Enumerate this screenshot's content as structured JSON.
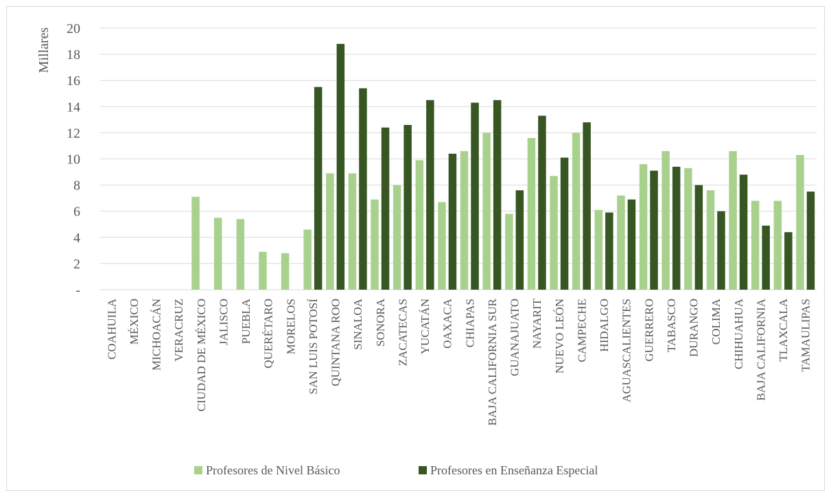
{
  "chart_data": {
    "type": "bar",
    "ylabel": "Millares",
    "ylim": [
      0,
      20
    ],
    "yticks": [
      {
        "value": 0,
        "label": "-"
      },
      {
        "value": 2,
        "label": "2"
      },
      {
        "value": 4,
        "label": "4"
      },
      {
        "value": 6,
        "label": "6"
      },
      {
        "value": 8,
        "label": "8"
      },
      {
        "value": 10,
        "label": "10"
      },
      {
        "value": 12,
        "label": "12"
      },
      {
        "value": 14,
        "label": "14"
      },
      {
        "value": 16,
        "label": "16"
      },
      {
        "value": 18,
        "label": "18"
      },
      {
        "value": 20,
        "label": "20"
      }
    ],
    "grid": true,
    "legend_position": "bottom",
    "categories": [
      "COAHUILA",
      "MÉXICO",
      "MICHOACÁN",
      "VERACRUZ",
      "CIUDAD DE MÉXICO",
      "JALISCO",
      "PUEBLA",
      "QUERÉTARO",
      "MORELOS",
      "SAN LUIS POTOSÍ",
      "QUINTANA ROO",
      "SINALOA",
      "SONORA",
      "ZACATECAS",
      "YUCATÁN",
      "OAXACA",
      "CHIAPAS",
      "BAJA CALIFORNIA SUR",
      "GUANAJUATO",
      "NAYARIT",
      "NUEVO LEÓN",
      "CAMPECHE",
      "HIDALGO",
      "AGUASCALIENTES",
      "GUERRERO",
      "TABASCO",
      "DURANGO",
      "COLIMA",
      "CHIHUAHUA",
      "BAJA CALIFORNIA",
      "TLAXCALA",
      "TAMAULIPAS"
    ],
    "series": [
      {
        "name": "Profesores de Nivel Básico",
        "color": "#a9d18e",
        "values": [
          0,
          0,
          0,
          0,
          7.1,
          5.5,
          5.4,
          2.9,
          2.8,
          4.6,
          8.9,
          8.9,
          6.9,
          8.0,
          9.9,
          6.7,
          10.6,
          12.0,
          5.8,
          11.6,
          8.7,
          12.0,
          6.1,
          7.2,
          9.6,
          10.6,
          9.3,
          7.6,
          10.6,
          6.8,
          6.8,
          10.3
        ]
      },
      {
        "name": "Profesores en Enseñanza Especial",
        "color": "#375623",
        "values": [
          0,
          0,
          0,
          0,
          0,
          0,
          0,
          0,
          0,
          15.5,
          18.8,
          15.4,
          12.4,
          12.6,
          14.5,
          10.4,
          14.3,
          14.5,
          7.6,
          13.3,
          10.1,
          12.8,
          5.9,
          6.9,
          9.1,
          9.4,
          8.0,
          6.0,
          8.8,
          4.9,
          4.4,
          7.5
        ]
      }
    ]
  }
}
